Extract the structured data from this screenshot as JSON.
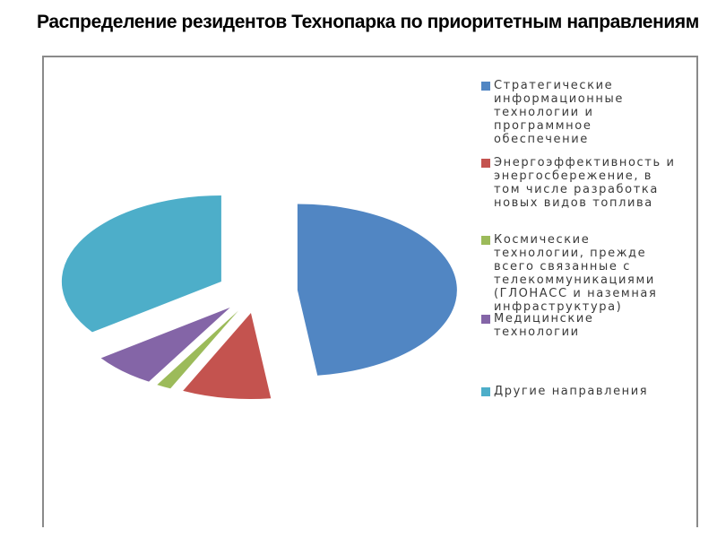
{
  "title": "Распределение резидентов Технопарка по приоритетным направлениям",
  "chart_data": {
    "type": "pie",
    "title": "Распределение резидентов Технопарка по приоритетным направлениям",
    "legend_position": "right",
    "start_angle_deg": 0,
    "direction": "clockwise",
    "exploded": true,
    "values_estimated": true,
    "slices": [
      {
        "label": "Стратегические информационные технологии и программное обеспечение",
        "value": 48,
        "color": "#5186C3"
      },
      {
        "label": "Энергоэффективность и энергосбережение, в том числе разработка новых видов топлива",
        "value": 9,
        "color": "#C4534F"
      },
      {
        "label": "Космические технологии, прежде всего связанные с телекоммуникациями (ГЛОНАСС и наземная инфраструктура)",
        "value": 1.5,
        "color": "#9CBB5A"
      },
      {
        "label": "Медицинские технологии",
        "value": 6.5,
        "color": "#8465A7"
      },
      {
        "label": "Другие направления",
        "value": 35,
        "color": "#4DAEC9"
      }
    ]
  },
  "legend": {
    "items": [
      {
        "label": "Стратегические\nинформационные\nтехнологии и\nпрограммное\nобеспечение"
      },
      {
        "label": "Энергоэффективность и\nэнергосбережение, в\nтом числе разработка\nновых видов топлива"
      },
      {
        "label": "Космические\nтехнологии, прежде\nвсего связанные с\nтелекоммуникациями\n(ГЛОНАСС и наземная\nинфраструктура)"
      },
      {
        "label": "Медицинские\nтехнологии"
      },
      {
        "label": "Другие направления"
      }
    ]
  }
}
